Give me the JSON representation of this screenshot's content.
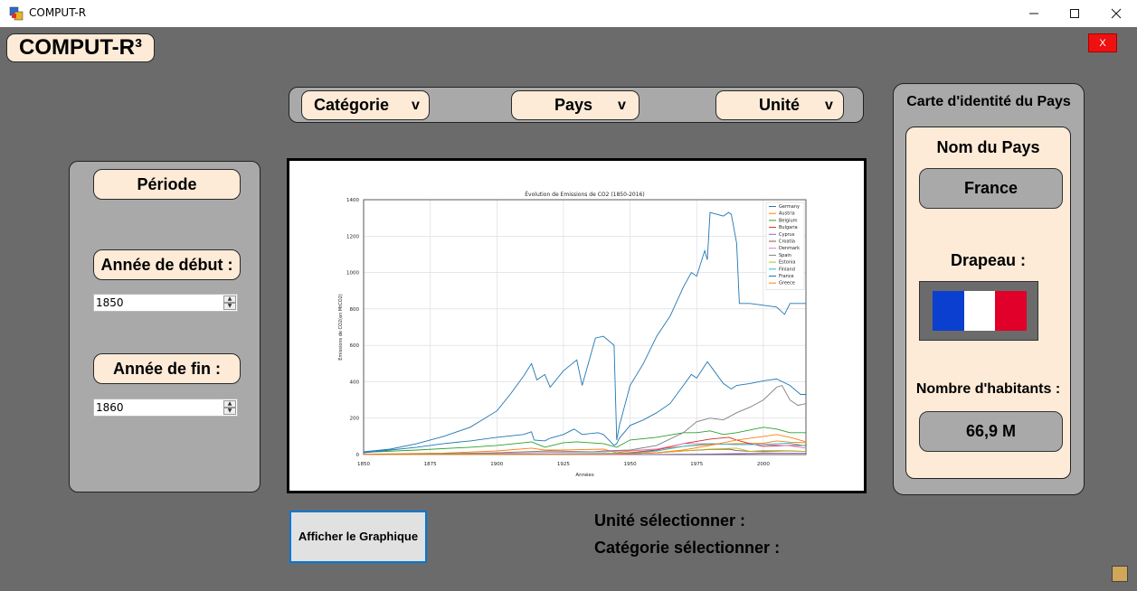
{
  "window": {
    "title": "COMPUT-R"
  },
  "app": {
    "title": "COMPUT-R³",
    "close_label": "X"
  },
  "toolbar": {
    "category": {
      "label": "Catégorie",
      "arrow": "v"
    },
    "country": {
      "label": "Pays",
      "arrow": "v"
    },
    "unit": {
      "label": "Unité",
      "arrow": "v"
    }
  },
  "period": {
    "title": "Période",
    "start_label": "Année de début :",
    "start_value": "1850",
    "end_label": "Année de fin :",
    "end_value": "1860"
  },
  "actions": {
    "show_chart": "Afficher le Graphique"
  },
  "selection": {
    "unit_label": "Unité sélectionner :",
    "category_label": "Catégorie sélectionner :"
  },
  "country_card": {
    "header": "Carte d'identité du Pays",
    "name_label": "Nom du Pays",
    "name_value": "France",
    "flag_label": "Drapeau :",
    "flag_colors": [
      "#0b3fcf",
      "#ffffff",
      "#e0002a"
    ],
    "population_label": "Nombre d'habitants :",
    "population_value": "66,9 M"
  },
  "chart_data": {
    "type": "line",
    "title": "Évolution de Emissions de CO2 (1850-2016)",
    "xlabel": "Années",
    "ylabel": "Emissions de CO2(en MtCO2)",
    "xlim": [
      1850,
      2016
    ],
    "ylim": [
      0,
      1400
    ],
    "x_ticks": [
      1850,
      1875,
      1900,
      1925,
      1950,
      1975,
      2000
    ],
    "y_ticks": [
      0,
      200,
      400,
      600,
      800,
      1000,
      1200,
      1400
    ],
    "grid": true,
    "legend_position": "top-right",
    "series": [
      {
        "name": "Germany",
        "color": "#1f77b4",
        "x": [
          1850,
          1860,
          1870,
          1880,
          1890,
          1900,
          1905,
          1910,
          1913,
          1915,
          1918,
          1920,
          1925,
          1930,
          1932,
          1937,
          1940,
          1944,
          1945,
          1946,
          1950,
          1955,
          1960,
          1965,
          1970,
          1973,
          1975,
          1978,
          1979,
          1980,
          1985,
          1987,
          1988,
          1990,
          1991,
          1995,
          2000,
          2005,
          2008,
          2010,
          2016
        ],
        "y": [
          15,
          30,
          60,
          100,
          150,
          240,
          330,
          430,
          500,
          410,
          440,
          370,
          460,
          520,
          380,
          640,
          650,
          600,
          80,
          160,
          380,
          500,
          650,
          760,
          920,
          1000,
          980,
          1120,
          1070,
          1330,
          1310,
          1330,
          1320,
          1160,
          830,
          830,
          820,
          810,
          770,
          830,
          830
        ]
      },
      {
        "name": "Austria",
        "color": "#ff7f0e",
        "x": [
          1850,
          1880,
          1900,
          1913,
          1918,
          1925,
          1940,
          1945,
          1950,
          1960,
          1970,
          1980,
          1990,
          2000,
          2005,
          2010,
          2016
        ],
        "y": [
          2,
          8,
          20,
          35,
          25,
          25,
          30,
          10,
          20,
          30,
          45,
          55,
          60,
          62,
          75,
          68,
          65
        ]
      },
      {
        "name": "Belgium",
        "color": "#2ca02c",
        "x": [
          1850,
          1870,
          1890,
          1900,
          1910,
          1913,
          1918,
          1925,
          1930,
          1940,
          1945,
          1950,
          1960,
          1970,
          1975,
          1980,
          1985,
          1990,
          2000,
          2005,
          2010,
          2016
        ],
        "y": [
          12,
          25,
          40,
          50,
          65,
          70,
          40,
          65,
          70,
          60,
          40,
          80,
          95,
          120,
          120,
          130,
          110,
          120,
          150,
          140,
          120,
          120
        ]
      },
      {
        "name": "Bulgaria",
        "color": "#d62728",
        "x": [
          1850,
          1900,
          1930,
          1945,
          1950,
          1960,
          1970,
          1980,
          1987,
          1990,
          1995,
          2000,
          2010,
          2016
        ],
        "y": [
          0,
          1,
          3,
          5,
          10,
          25,
          60,
          85,
          95,
          80,
          60,
          45,
          50,
          50
        ]
      },
      {
        "name": "Cyprus",
        "color": "#9467bd",
        "x": [
          1850,
          1950,
          1960,
          1970,
          1980,
          1990,
          2000,
          2010,
          2016
        ],
        "y": [
          0,
          0,
          1,
          2,
          3,
          5,
          7,
          8,
          7
        ]
      },
      {
        "name": "Croatia",
        "color": "#8c564b",
        "x": [
          1850,
          1900,
          1930,
          1950,
          1960,
          1970,
          1980,
          1987,
          1990,
          1995,
          2000,
          2010,
          2016
        ],
        "y": [
          0,
          1,
          3,
          5,
          10,
          20,
          28,
          30,
          22,
          18,
          20,
          20,
          17
        ]
      },
      {
        "name": "Denmark",
        "color": "#e377c2",
        "x": [
          1850,
          1880,
          1900,
          1920,
          1940,
          1950,
          1960,
          1970,
          1980,
          1990,
          2000,
          2010,
          2016
        ],
        "y": [
          1,
          3,
          6,
          12,
          15,
          22,
          30,
          60,
          60,
          55,
          55,
          48,
          35
        ]
      },
      {
        "name": "Spain",
        "color": "#7f7f7f",
        "x": [
          1850,
          1880,
          1900,
          1920,
          1936,
          1940,
          1950,
          1960,
          1970,
          1975,
          1980,
          1985,
          1990,
          1995,
          2000,
          2005,
          2007,
          2010,
          2013,
          2016
        ],
        "y": [
          1,
          5,
          10,
          20,
          15,
          20,
          25,
          50,
          120,
          180,
          200,
          190,
          230,
          260,
          300,
          370,
          380,
          300,
          270,
          280
        ]
      },
      {
        "name": "Estonia",
        "color": "#bcbd22",
        "x": [
          1850,
          1940,
          1950,
          1960,
          1970,
          1980,
          1990,
          1995,
          2000,
          2010,
          2016
        ],
        "y": [
          0,
          2,
          5,
          10,
          20,
          30,
          35,
          18,
          15,
          19,
          18
        ]
      },
      {
        "name": "Finland",
        "color": "#17becf",
        "x": [
          1850,
          1900,
          1930,
          1950,
          1960,
          1970,
          1980,
          1990,
          2000,
          2010,
          2016
        ],
        "y": [
          0,
          2,
          5,
          8,
          20,
          45,
          60,
          55,
          56,
          62,
          47
        ]
      },
      {
        "name": "France",
        "color": "#1f77b4",
        "x": [
          1850,
          1860,
          1870,
          1880,
          1890,
          1900,
          1910,
          1913,
          1914,
          1918,
          1920,
          1925,
          1929,
          1932,
          1938,
          1940,
          1944,
          1945,
          1946,
          1950,
          1955,
          1960,
          1965,
          1970,
          1973,
          1975,
          1979,
          1980,
          1985,
          1988,
          1990,
          1995,
          2000,
          2005,
          2010,
          2014,
          2016
        ],
        "y": [
          10,
          25,
          40,
          60,
          75,
          95,
          110,
          125,
          80,
          75,
          90,
          110,
          140,
          110,
          120,
          110,
          50,
          60,
          90,
          160,
          190,
          230,
          280,
          380,
          440,
          420,
          510,
          490,
          390,
          360,
          380,
          390,
          405,
          415,
          380,
          330,
          330
        ]
      },
      {
        "name": "Greece",
        "color": "#ff7f0e",
        "x": [
          1850,
          1930,
          1950,
          1960,
          1970,
          1980,
          1990,
          2000,
          2005,
          2010,
          2016
        ],
        "y": [
          0,
          2,
          5,
          10,
          25,
          50,
          80,
          100,
          110,
          95,
          70
        ]
      }
    ]
  }
}
